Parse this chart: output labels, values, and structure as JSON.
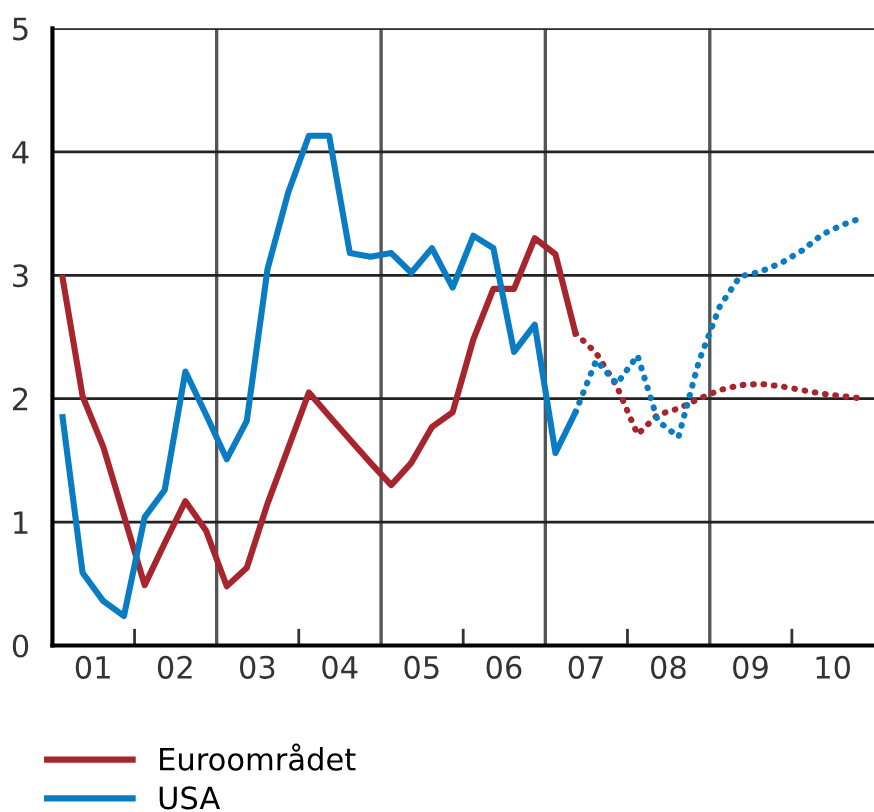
{
  "chart_data": {
    "type": "line",
    "series": [
      {
        "name": "Euroområdet",
        "color": "#a7262e",
        "line_style": "solid",
        "x": [
          "2001-02-15",
          "2001-05-15",
          "2001-08-15",
          "2001-11-15",
          "2002-02-15",
          "2002-05-15",
          "2002-08-15",
          "2002-11-15",
          "2003-02-15",
          "2003-05-15",
          "2003-08-15",
          "2003-11-15",
          "2004-02-15",
          "2004-05-15",
          "2004-08-15",
          "2004-11-15",
          "2005-02-15",
          "2005-05-15",
          "2005-08-15",
          "2005-11-15",
          "2006-02-15",
          "2006-05-15",
          "2006-08-15",
          "2006-11-15",
          "2007-02-15",
          "2007-05-15"
        ],
        "values": [
          2.98,
          2.02,
          1.61,
          1.05,
          0.49,
          0.83,
          1.17,
          0.93,
          0.48,
          0.63,
          1.15,
          1.6,
          2.05,
          1.86,
          1.67,
          1.48,
          1.3,
          1.48,
          1.77,
          1.89,
          2.48,
          2.89,
          2.89,
          3.3,
          3.17,
          2.53
        ]
      },
      {
        "name": "USA",
        "color": "#0a7cc3",
        "line_style": "solid",
        "x": [
          "2001-02-15",
          "2001-05-15",
          "2001-08-15",
          "2001-11-15",
          "2002-02-15",
          "2002-05-15",
          "2002-08-15",
          "2002-11-15",
          "2003-02-15",
          "2003-05-15",
          "2003-08-15",
          "2003-11-15",
          "2004-02-15",
          "2004-05-15",
          "2004-08-15",
          "2004-11-15",
          "2005-02-15",
          "2005-05-15",
          "2005-08-15",
          "2005-11-15",
          "2006-02-15",
          "2006-05-15",
          "2006-08-15",
          "2006-11-15",
          "2007-02-15",
          "2007-05-15"
        ],
        "values": [
          1.85,
          0.59,
          0.36,
          0.24,
          1.04,
          1.26,
          2.22,
          1.87,
          1.51,
          1.82,
          3.05,
          3.67,
          4.13,
          4.13,
          3.18,
          3.15,
          3.18,
          3.02,
          3.22,
          2.9,
          3.32,
          3.22,
          2.38,
          2.6,
          1.56,
          1.89
        ]
      },
      {
        "color": "#a7262e",
        "line_style": "dotted",
        "x": [
          "2007-05-15",
          "2007-08-15",
          "2007-11-15",
          "2008-02-15",
          "2008-05-15",
          "2008-08-15",
          "2008-11-15",
          "2009-02-15",
          "2009-05-15",
          "2009-08-15",
          "2009-11-15",
          "2010-02-15",
          "2010-05-15",
          "2010-08-15",
          "2010-11-15"
        ],
        "values": [
          2.53,
          2.37,
          2.1,
          1.71,
          1.87,
          1.92,
          2.0,
          2.07,
          2.11,
          2.12,
          2.1,
          2.07,
          2.04,
          2.02,
          2.0
        ]
      },
      {
        "color": "#0a7cc3",
        "line_style": "dotted",
        "x": [
          "2007-05-15",
          "2007-08-15",
          "2007-11-15",
          "2008-02-15",
          "2008-05-15",
          "2008-08-15",
          "2008-11-15",
          "2009-02-15",
          "2009-05-15",
          "2009-08-15",
          "2009-11-15",
          "2010-02-15",
          "2010-05-15",
          "2010-08-15",
          "2010-11-15"
        ],
        "values": [
          1.89,
          2.31,
          2.12,
          2.35,
          1.82,
          1.69,
          2.31,
          2.75,
          2.99,
          3.03,
          3.1,
          3.2,
          3.33,
          3.41,
          3.47
        ]
      }
    ],
    "xlim": [
      "2001",
      "2011"
    ],
    "xticks": [
      {
        "value": "2001-07",
        "label": "01"
      },
      {
        "value": "2002",
        "label": null
      },
      {
        "value": "2002-07",
        "label": "02"
      },
      {
        "value": "2003-07",
        "label": "03"
      },
      {
        "value": "2004",
        "label": null
      },
      {
        "value": "2004-07",
        "label": "04"
      },
      {
        "value": "2005-07",
        "label": "05"
      },
      {
        "value": "2006",
        "label": null
      },
      {
        "value": "2006-07",
        "label": "06"
      },
      {
        "value": "2007-07",
        "label": "07"
      },
      {
        "value": "2008",
        "label": null
      },
      {
        "value": "2008-07",
        "label": "08"
      },
      {
        "value": "2009-07",
        "label": "09"
      },
      {
        "value": "2010",
        "label": null
      },
      {
        "value": "2010-07",
        "label": "10"
      }
    ],
    "ylim": [
      0,
      5
    ],
    "yticks": [
      0,
      1,
      2,
      3,
      4,
      5
    ],
    "ref_lines": [
      {
        "axis": "x",
        "value": "2003",
        "color": "#555555"
      },
      {
        "axis": "x",
        "value": "2005",
        "color": "#555555"
      },
      {
        "axis": "x",
        "value": "2007",
        "color": "#555555"
      },
      {
        "axis": "x",
        "value": "2009",
        "color": "#555555"
      }
    ],
    "grid": "y",
    "legend": "bottom left",
    "marker": "none"
  }
}
